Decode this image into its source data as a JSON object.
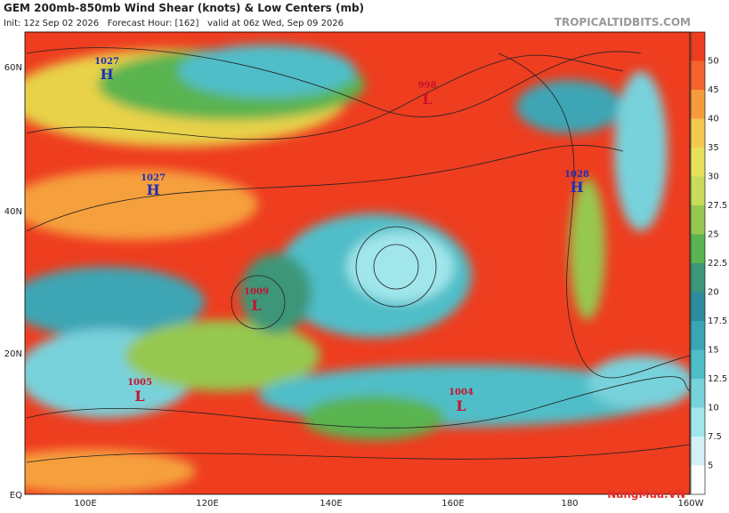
{
  "header": {
    "title": "GEM 200mb-850mb Wind Shear (knots) & Low Centers (mb)",
    "init": "Init: 12z Sep 02 2026   Forecast Hour: [162]   valid at 06z Wed, Sep 09 2026",
    "source": "TROPICALTIDBITS.COM"
  },
  "map": {
    "lat_labels": [
      "60N",
      "40N",
      "20N",
      "EQ"
    ],
    "lon_labels": [
      "100E",
      "120E",
      "140E",
      "160E",
      "180",
      "160W"
    ],
    "centers": [
      {
        "pressure": "1027",
        "symbol": "H"
      },
      {
        "pressure": "1027",
        "symbol": "H"
      },
      {
        "pressure": "1028",
        "symbol": "H"
      },
      {
        "pressure": "998",
        "symbol": "L"
      },
      {
        "pressure": "1009",
        "symbol": "L"
      },
      {
        "pressure": "1005",
        "symbol": "L"
      },
      {
        "pressure": "1004",
        "symbol": "L"
      }
    ]
  },
  "colorbar": {
    "labels": [
      "50",
      "45",
      "40",
      "35",
      "30",
      "27.5",
      "25",
      "22.5",
      "20",
      "17.5",
      "15",
      "12.5",
      "10",
      "7.5",
      "5"
    ]
  },
  "watermark": "NangMua.VN"
}
